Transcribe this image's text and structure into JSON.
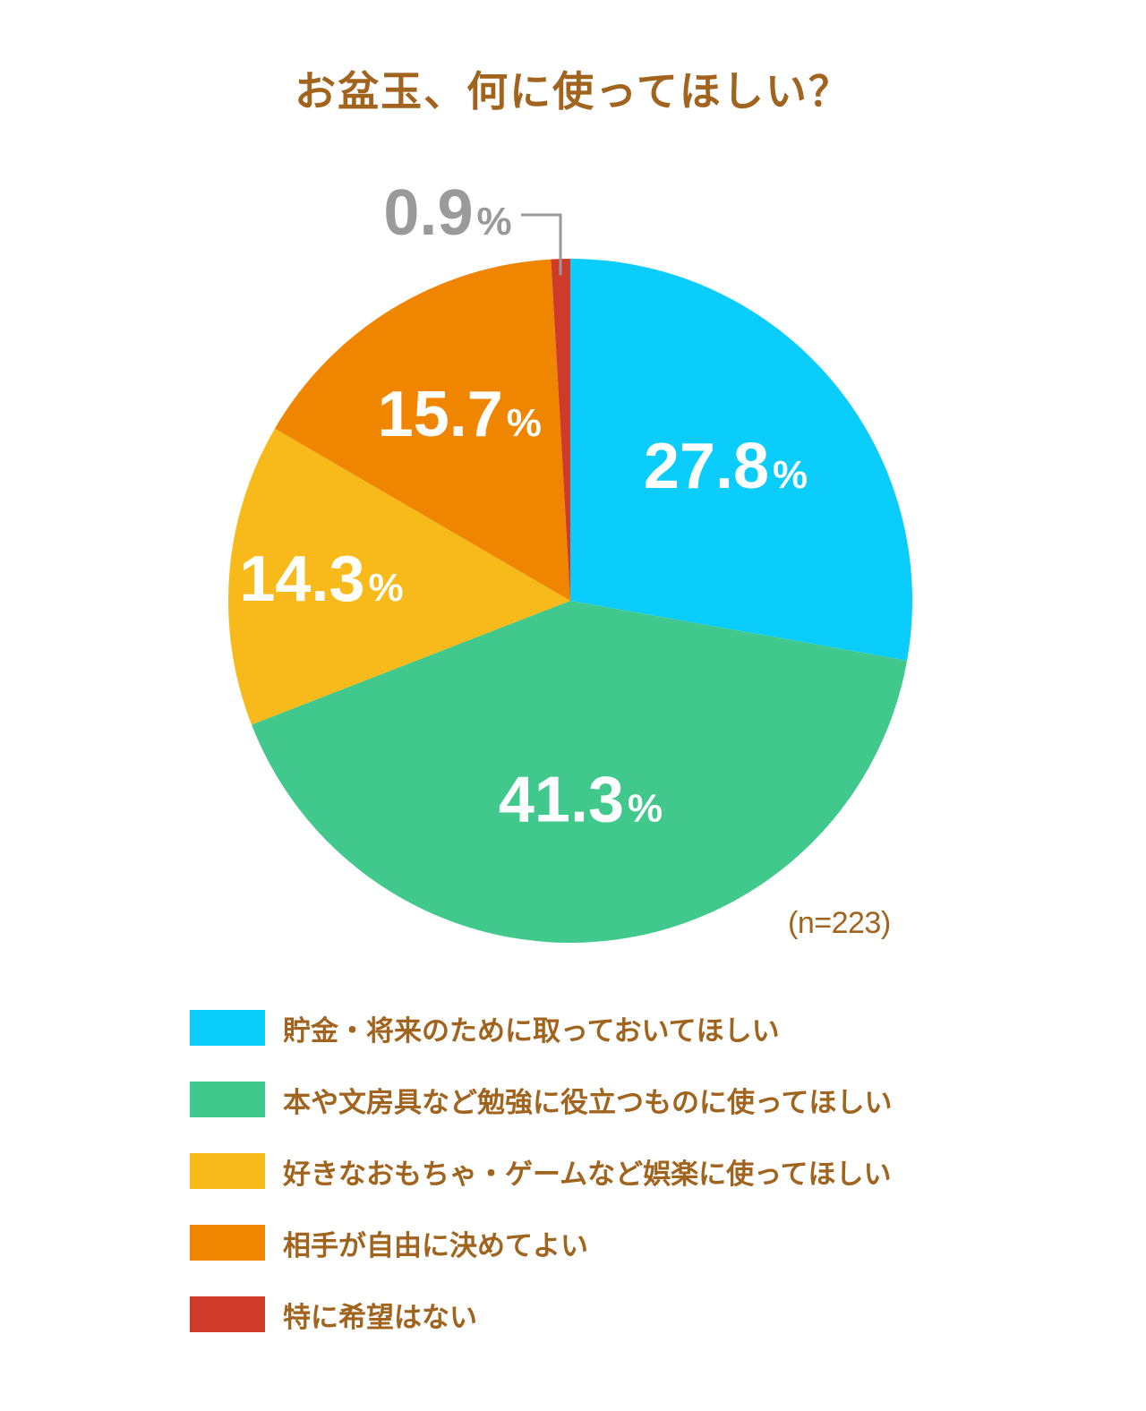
{
  "title": "お盆玉、何に使ってほしい？",
  "sample_size": "(n=223)",
  "percent_sign": "%",
  "chart_data": {
    "type": "pie",
    "title": "お盆玉、何に使ってほしい？",
    "start": "12 o'clock, clockwise",
    "slices": [
      {
        "label": "貯金・将来のために取っておいてほしい",
        "value": 27.8,
        "display": "27.8",
        "color": "#0bcdfb"
      },
      {
        "label": "本や文房具など勉強に役立つものに使ってほしい",
        "value": 41.3,
        "display": "41.3",
        "color": "#41c98d"
      },
      {
        "label": "好きなおもちゃ・ゲームなど娯楽に使ってほしい",
        "value": 14.3,
        "display": "14.3",
        "color": "#f8ba1b"
      },
      {
        "label": "相手が自由に決めてよい",
        "value": 15.7,
        "display": "15.7",
        "color": "#f08500"
      },
      {
        "label": "特に希望はない",
        "value": 0.9,
        "display": "0.9",
        "color": "#cf3a2a"
      }
    ],
    "small_label_color": "#9a9a9a",
    "text_color": "#a0641e"
  }
}
